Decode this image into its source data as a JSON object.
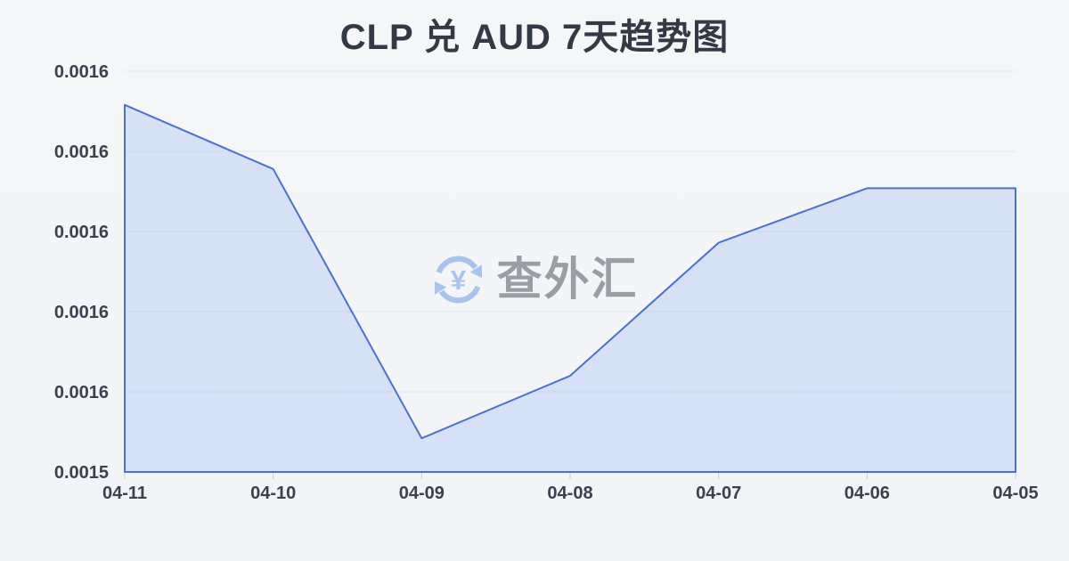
{
  "page": {
    "background_top": "#f5f6f8",
    "background_bottom": "#f2f4f8"
  },
  "watermark": {
    "text": "查外汇",
    "icon": "currency-exchange-yen-icon",
    "icon_color": "#a7c3ee",
    "text_color": "#9a9da3"
  },
  "chart_data": {
    "type": "area",
    "title": "CLP 兑 AUD 7天趋势图",
    "x": [
      "04-11",
      "04-10",
      "04-09",
      "04-08",
      "04-07",
      "04-06",
      "04-05"
    ],
    "values": [
      0.0015858,
      0.0015778,
      0.0015442,
      0.001552,
      0.0015686,
      0.0015754,
      0.0015754
    ],
    "ylim": [
      0.00154,
      0.00159
    ],
    "y_ticks": [
      {
        "value": 0.00154,
        "label": "0.0015"
      },
      {
        "value": 0.00155,
        "label": "0.0016"
      },
      {
        "value": 0.00156,
        "label": "0.0016"
      },
      {
        "value": 0.00157,
        "label": "0.0016"
      },
      {
        "value": 0.00158,
        "label": "0.0016"
      },
      {
        "value": 0.00159,
        "label": "0.0016"
      }
    ],
    "xlabel": "",
    "ylabel": "",
    "grid": true,
    "legend": "none",
    "colors": {
      "line": "#4a72c8",
      "fill": "rgba(168,191,242,0.38)",
      "gridline": "#e3e6eb",
      "axis_line": "#d7dbe2",
      "tick": "#c9ced6",
      "axis_text": "#3b414d",
      "title_text": "#333a45"
    }
  }
}
